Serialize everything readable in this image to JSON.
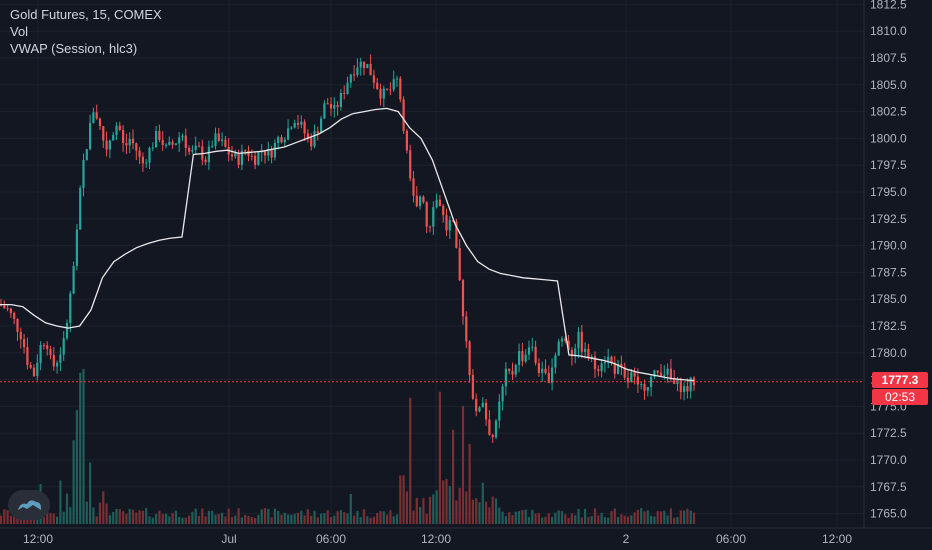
{
  "legend": {
    "symbol": "Gold Futures, 15, COMEX",
    "vol": "Vol",
    "vwap": "VWAP (Session, hlc3)"
  },
  "price_tag": {
    "value": "1777.3",
    "countdown": "02:53"
  },
  "colors": {
    "background": "#131722",
    "grid": "#1e222d",
    "up": "#26a69a",
    "down": "#ef5350",
    "vol_up": "#1f5e59",
    "vol_down": "#7a2f33",
    "vwap": "#e8e8e8",
    "axis_text": "#b2b5be",
    "last_price": "#f23645"
  },
  "chart_data": {
    "type": "candlestick",
    "title": "Gold Futures, 15, COMEX",
    "ylim": [
      1764.0,
      1812.5
    ],
    "y_ticks": [
      1765.0,
      1767.5,
      1770.0,
      1772.5,
      1775.0,
      1777.5,
      1780.0,
      1782.5,
      1785.0,
      1787.5,
      1790.0,
      1792.5,
      1795.0,
      1797.5,
      1800.0,
      1802.5,
      1805.0,
      1807.5,
      1810.0,
      1812.5
    ],
    "x_tick_labels": [
      "12:00",
      "Jul",
      "06:00",
      "12:00",
      "2",
      "06:00",
      "12:00"
    ],
    "last_price": 1777.3,
    "vwap_series": [
      1784.5,
      1784.5,
      1784.3,
      1783.5,
      1782.8,
      1782.5,
      1782.3,
      1782.5,
      1784.0,
      1787.0,
      1788.5,
      1789.2,
      1789.8,
      1790.2,
      1790.5,
      1790.7,
      1790.8,
      1798.5,
      1798.6,
      1798.8,
      1798.9,
      1798.6,
      1798.7,
      1798.8,
      1799.0,
      1799.2,
      1799.6,
      1800.0,
      1800.4,
      1801.0,
      1801.8,
      1802.3,
      1802.5,
      1802.7,
      1802.8,
      1802.5,
      1801.0,
      1800.0,
      1798.0,
      1795.0,
      1792.0,
      1790.0,
      1788.5,
      1787.8,
      1787.4,
      1787.2,
      1787.0,
      1786.9,
      1786.8,
      1786.7,
      1779.8,
      1779.7,
      1779.5,
      1779.3,
      1779.0,
      1778.5,
      1778.2,
      1778.0,
      1777.8,
      1777.6,
      1777.5,
      1777.4
    ]
  }
}
